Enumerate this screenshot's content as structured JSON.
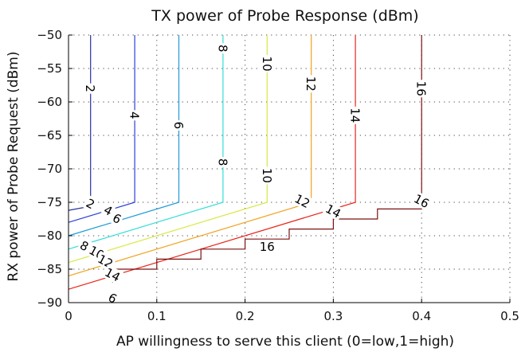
{
  "chart_data": {
    "type": "contour",
    "title": "TX power of Probe Response (dBm)",
    "xlabel": "AP willingness to serve this client (0=low,1=high)",
    "ylabel": "RX power of Probe Request (dBm)",
    "xlim": [
      0,
      0.5
    ],
    "ylim": [
      -90,
      -50
    ],
    "grid": "dotted",
    "x_ticks": [
      0,
      0.1,
      0.2,
      0.3,
      0.4,
      0.5
    ],
    "x_tick_labels": [
      "0",
      "0.1",
      "0.2",
      "0.3",
      "0.4",
      "0.5"
    ],
    "y_ticks": [
      -50,
      -55,
      -60,
      -65,
      -70,
      -75,
      -80,
      -85,
      -90
    ],
    "y_tick_labels": [
      "−50",
      "−55",
      "−60",
      "−65",
      "−70",
      "−75",
      "−80",
      "−85",
      "−90"
    ],
    "levels": [
      {
        "level": 2,
        "label": "2",
        "color": "#26329c",
        "points": [
          [
            0.025,
            -50
          ],
          [
            0.025,
            -75.6
          ],
          [
            0,
            -76.2
          ]
        ],
        "labels": [
          {
            "x": 0.025,
            "y": -58,
            "text": "2"
          },
          {
            "x": 0.025,
            "y": -75.2,
            "text": "2"
          }
        ]
      },
      {
        "level": 4,
        "label": "4",
        "color": "#2a3fd8",
        "points": [
          [
            0.075,
            -50
          ],
          [
            0.075,
            -75
          ],
          [
            0,
            -78
          ]
        ],
        "labels": [
          {
            "x": 0.075,
            "y": -62,
            "text": "4"
          },
          {
            "x": 0.045,
            "y": -76.2,
            "text": "4"
          }
        ]
      },
      {
        "level": 6,
        "label": "6",
        "color": "#1f9ad8",
        "points": [
          [
            0.125,
            -50
          ],
          [
            0.125,
            -75
          ],
          [
            0,
            -80
          ]
        ],
        "labels": [
          {
            "x": 0.125,
            "y": -63.5,
            "text": "6"
          },
          {
            "x": 0.055,
            "y": -77.4,
            "text": "6"
          },
          {
            "x": 0.05,
            "y": -89.3,
            "text": "6"
          }
        ]
      },
      {
        "level": 8,
        "label": "8",
        "color": "#33dfd5",
        "points": [
          [
            0.175,
            -50
          ],
          [
            0.175,
            -75
          ],
          [
            0,
            -82
          ]
        ],
        "labels": [
          {
            "x": 0.175,
            "y": -52,
            "text": "8"
          },
          {
            "x": 0.175,
            "y": -69,
            "text": "8"
          },
          {
            "x": 0.018,
            "y": -81.5,
            "text": "8"
          }
        ]
      },
      {
        "level": 10,
        "label": "10",
        "color": "#d8e845",
        "points": [
          [
            0.225,
            -50
          ],
          [
            0.225,
            -75
          ],
          [
            0,
            -84
          ]
        ],
        "labels": [
          {
            "x": 0.225,
            "y": -54.3,
            "text": "10"
          },
          {
            "x": 0.225,
            "y": -71,
            "text": "10"
          },
          {
            "x": 0.032,
            "y": -82.5,
            "text": "10"
          }
        ]
      },
      {
        "level": 12,
        "label": "12",
        "color": "#f0a21f",
        "points": [
          [
            0.275,
            -50
          ],
          [
            0.275,
            -75
          ],
          [
            0,
            -86
          ]
        ],
        "labels": [
          {
            "x": 0.275,
            "y": -57.3,
            "text": "12"
          },
          {
            "x": 0.265,
            "y": -74.8,
            "text": "12"
          },
          {
            "x": 0.042,
            "y": -83.8,
            "text": "12"
          }
        ]
      },
      {
        "level": 14,
        "label": "14",
        "color": "#e8261b",
        "points": [
          [
            0.325,
            -50
          ],
          [
            0.325,
            -75
          ],
          [
            0,
            -88
          ]
        ],
        "labels": [
          {
            "x": 0.325,
            "y": -62,
            "text": "14"
          },
          {
            "x": 0.3,
            "y": -76.3,
            "text": "14"
          },
          {
            "x": 0.05,
            "y": -85.8,
            "text": "14"
          }
        ]
      },
      {
        "level": 16,
        "label": "16",
        "color": "#7c1010",
        "points": [
          [
            0.4,
            -50
          ],
          [
            0.4,
            -76
          ],
          [
            0.35,
            -76
          ],
          [
            0.35,
            -77.5
          ],
          [
            0.3,
            -77.5
          ],
          [
            0.3,
            -79
          ],
          [
            0.25,
            -79
          ],
          [
            0.25,
            -80.5
          ],
          [
            0.2,
            -80.5
          ],
          [
            0.2,
            -82
          ],
          [
            0.15,
            -82
          ],
          [
            0.15,
            -83.5
          ],
          [
            0.1,
            -83.5
          ],
          [
            0.1,
            -85
          ],
          [
            0.05,
            -85
          ],
          [
            0.05,
            -87
          ]
        ],
        "labels": [
          {
            "x": 0.4,
            "y": -58,
            "text": "16"
          },
          {
            "x": 0.4,
            "y": -74.8,
            "text": "16"
          },
          {
            "x": 0.225,
            "y": -81.6,
            "text": "16"
          }
        ]
      }
    ]
  }
}
